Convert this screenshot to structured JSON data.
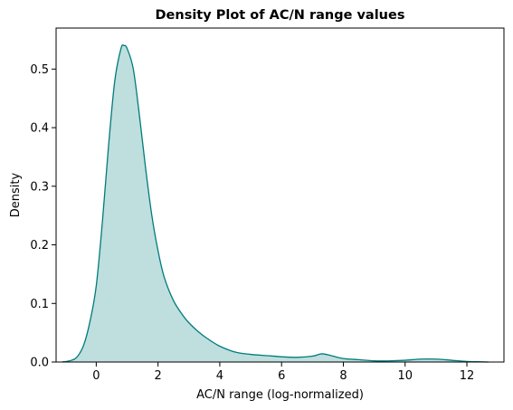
{
  "chart_data": {
    "type": "area",
    "title": "Density Plot of AC/N range values",
    "xlabel": "AC/N range (log-normalized)",
    "ylabel": "Density",
    "xlim": [
      -1.3,
      13.2
    ],
    "ylim": [
      0,
      0.57
    ],
    "x_ticks": [
      0,
      2,
      4,
      6,
      8,
      10,
      12
    ],
    "y_ticks": [
      0.0,
      0.1,
      0.2,
      0.3,
      0.4,
      0.5
    ],
    "grid": false,
    "legend": "none",
    "colors": {
      "line": "#007b7b",
      "fill": "#007b7b",
      "fill_opacity": 0.25
    },
    "series": [
      {
        "x": [
          -1.1,
          -0.8,
          -0.6,
          -0.4,
          -0.2,
          0.0,
          0.2,
          0.4,
          0.6,
          0.8,
          0.9,
          1.0,
          1.2,
          1.4,
          1.6,
          1.8,
          2.0,
          2.2,
          2.5,
          2.8,
          3.0,
          3.3,
          3.6,
          4.0,
          4.5,
          5.0,
          5.5,
          6.0,
          6.5,
          7.0,
          7.3,
          7.6,
          8.0,
          8.5,
          9.0,
          9.5,
          10.0,
          10.5,
          11.0,
          11.5,
          12.0,
          12.3,
          12.7
        ],
        "y": [
          0.0,
          0.003,
          0.01,
          0.03,
          0.07,
          0.13,
          0.24,
          0.37,
          0.48,
          0.535,
          0.54,
          0.535,
          0.5,
          0.42,
          0.33,
          0.25,
          0.19,
          0.145,
          0.105,
          0.08,
          0.067,
          0.052,
          0.04,
          0.027,
          0.017,
          0.013,
          0.011,
          0.009,
          0.008,
          0.01,
          0.014,
          0.011,
          0.006,
          0.004,
          0.002,
          0.002,
          0.003,
          0.005,
          0.005,
          0.003,
          0.001,
          0.0005,
          0.0
        ]
      }
    ]
  }
}
